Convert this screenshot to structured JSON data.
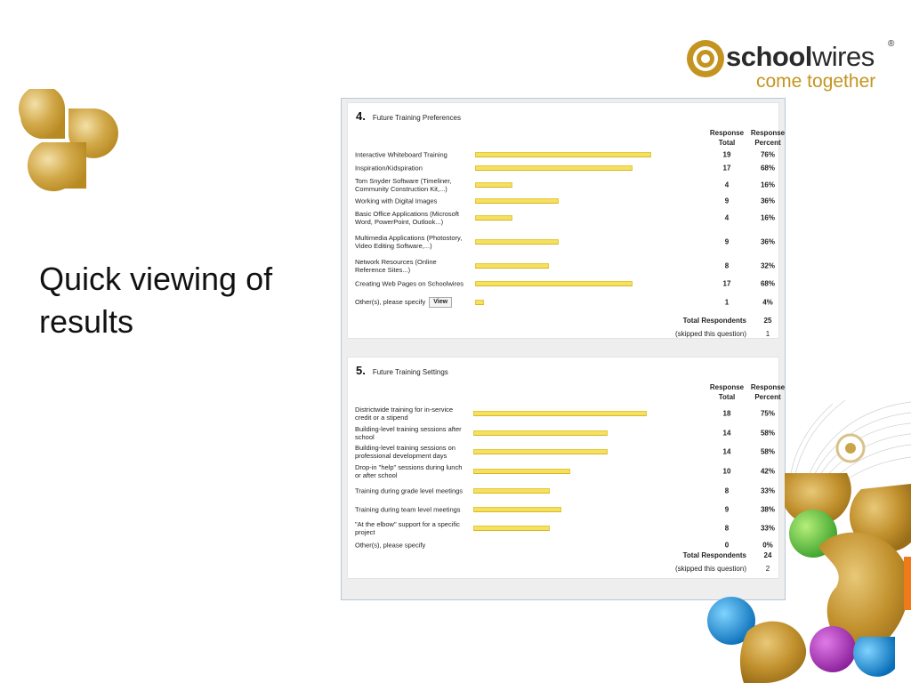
{
  "slide": {
    "headline": "Quick viewing of results"
  },
  "logo": {
    "brand_bold": "school",
    "brand_light": "wires",
    "registered": "®",
    "tagline": "come together",
    "brand_color": "#c49420"
  },
  "survey": {
    "col_total": "Response Total",
    "col_percent": "Response Percent",
    "bar_fill": "#f5e060",
    "questions": [
      {
        "number": "4.",
        "title": "Future Training Preferences",
        "rows": [
          {
            "label": "Interactive Whiteboard Training",
            "total": "19",
            "percent": "76%",
            "value": 76
          },
          {
            "label": "Inspiration/Kidspiration",
            "total": "17",
            "percent": "68%",
            "value": 68
          },
          {
            "label": "Tom Snyder Software (Timeliner, Community Construction Kit,...)",
            "total": "4",
            "percent": "16%",
            "value": 16
          },
          {
            "label": "Working with Digital Images",
            "total": "9",
            "percent": "36%",
            "value": 36
          },
          {
            "label": "Basic Office Applications (Microsoft Word, PowerPoint, Outlook...)",
            "total": "4",
            "percent": "16%",
            "value": 16
          },
          {
            "label": "Multimedia Applications (Photostory, Video Editing Software,...)",
            "total": "9",
            "percent": "36%",
            "value": 36
          },
          {
            "label": "Network Resources (Online Reference Sites...)",
            "total": "8",
            "percent": "32%",
            "value": 32
          },
          {
            "label": "Creating Web Pages on Schoolwires",
            "total": "17",
            "percent": "68%",
            "value": 68
          },
          {
            "label": "Other(s), please specify",
            "total": "1",
            "percent": "4%",
            "value": 4,
            "view_label": "View"
          }
        ],
        "total_respondents_label": "Total Respondents",
        "total_respondents": "25",
        "skipped_label": "(skipped this question)",
        "skipped": "1"
      },
      {
        "number": "5.",
        "title": "Future Training Settings",
        "rows": [
          {
            "label": "Districtwide training for in-service credit or a stipend",
            "total": "18",
            "percent": "75%",
            "value": 75
          },
          {
            "label": "Building-level training sessions after school",
            "total": "14",
            "percent": "58%",
            "value": 58
          },
          {
            "label": "Building-level training sessions on professional development days",
            "total": "14",
            "percent": "58%",
            "value": 58
          },
          {
            "label": "Drop-in \"help\" sessions during lunch or after school",
            "total": "10",
            "percent": "42%",
            "value": 42
          },
          {
            "label": "Training during grade level meetings",
            "total": "8",
            "percent": "33%",
            "value": 33
          },
          {
            "label": "Training during team level meetings",
            "total": "9",
            "percent": "38%",
            "value": 38
          },
          {
            "label": "\"At the elbow\" support for a specific project",
            "total": "8",
            "percent": "33%",
            "value": 33
          },
          {
            "label": "Other(s), please specify",
            "total": "0",
            "percent": "0%",
            "value": 0
          }
        ],
        "total_respondents_label": "Total Respondents",
        "total_respondents": "24",
        "skipped_label": "(skipped this question)",
        "skipped": "2"
      }
    ]
  }
}
